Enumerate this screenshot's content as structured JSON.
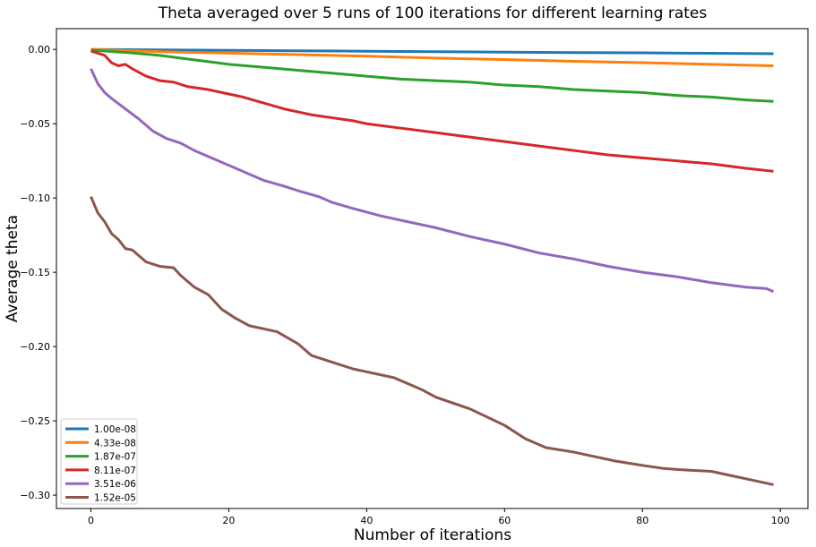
{
  "chart_data": {
    "type": "line",
    "title": "Theta averaged over 5 runs of 100 iterations for different learning rates",
    "xlabel": "Number of iterations",
    "ylabel": "Average theta",
    "xlim": [
      -5,
      104
    ],
    "ylim": [
      -0.309,
      0.014
    ],
    "xticks": [
      0,
      20,
      40,
      60,
      80,
      100
    ],
    "xtick_labels": [
      "0",
      "20",
      "40",
      "60",
      "80",
      "100"
    ],
    "yticks": [
      0.0,
      -0.05,
      -0.1,
      -0.15,
      -0.2,
      -0.25,
      -0.3
    ],
    "ytick_labels": [
      "0.00",
      "−0.05",
      "−0.10",
      "−0.15",
      "−0.20",
      "−0.25",
      "−0.30"
    ],
    "grid": false,
    "legend_position": "lower-left",
    "series": [
      {
        "name": "1.00e-08",
        "color": "#1f77b4",
        "x": [
          0,
          10,
          20,
          30,
          40,
          50,
          60,
          70,
          80,
          90,
          99
        ],
        "values": [
          0.0,
          -0.0003,
          -0.0006,
          -0.0009,
          -0.0012,
          -0.0015,
          -0.0018,
          -0.0021,
          -0.0023,
          -0.0026,
          -0.0029
        ]
      },
      {
        "name": "4.33e-08",
        "color": "#ff7f0e",
        "x": [
          0,
          10,
          20,
          30,
          40,
          50,
          60,
          70,
          80,
          90,
          99
        ],
        "values": [
          0.0,
          -0.0015,
          -0.0025,
          -0.0035,
          -0.0045,
          -0.0058,
          -0.0068,
          -0.008,
          -0.0089,
          -0.01,
          -0.011
        ]
      },
      {
        "name": "1.87e-07",
        "color": "#2ca02c",
        "x": [
          0,
          5,
          10,
          15,
          20,
          25,
          30,
          35,
          40,
          45,
          50,
          55,
          60,
          65,
          70,
          75,
          80,
          85,
          90,
          95,
          99
        ],
        "values": [
          -0.0005,
          -0.002,
          -0.004,
          -0.007,
          -0.01,
          -0.012,
          -0.014,
          -0.016,
          -0.018,
          -0.02,
          -0.021,
          -0.022,
          -0.024,
          -0.025,
          -0.027,
          -0.028,
          -0.029,
          -0.031,
          -0.032,
          -0.034,
          -0.035
        ]
      },
      {
        "name": "8.11e-07",
        "color": "#d62728",
        "x": [
          0,
          2,
          3,
          4,
          5,
          6,
          8,
          10,
          12,
          14,
          17,
          20,
          22,
          25,
          28,
          30,
          32,
          35,
          38,
          40,
          45,
          50,
          55,
          60,
          65,
          70,
          75,
          80,
          85,
          90,
          95,
          99
        ],
        "values": [
          -0.001,
          -0.004,
          -0.009,
          -0.011,
          -0.01,
          -0.013,
          -0.018,
          -0.021,
          -0.022,
          -0.025,
          -0.027,
          -0.03,
          -0.032,
          -0.036,
          -0.04,
          -0.042,
          -0.044,
          -0.046,
          -0.048,
          -0.05,
          -0.053,
          -0.056,
          -0.059,
          -0.062,
          -0.065,
          -0.068,
          -0.071,
          -0.073,
          -0.075,
          -0.077,
          -0.08,
          -0.082
        ]
      },
      {
        "name": "3.51e-06",
        "color": "#9467bd",
        "x": [
          0,
          1,
          2,
          3,
          5,
          7,
          9,
          11,
          13,
          15,
          17,
          20,
          23,
          25,
          28,
          30,
          33,
          35,
          38,
          42,
          46,
          50,
          55,
          60,
          65,
          70,
          75,
          80,
          85,
          90,
          95,
          98,
          99
        ],
        "values": [
          -0.013,
          -0.023,
          -0.029,
          -0.033,
          -0.04,
          -0.047,
          -0.055,
          -0.06,
          -0.063,
          -0.068,
          -0.072,
          -0.078,
          -0.084,
          -0.088,
          -0.092,
          -0.095,
          -0.099,
          -0.103,
          -0.107,
          -0.112,
          -0.116,
          -0.12,
          -0.126,
          -0.131,
          -0.137,
          -0.141,
          -0.146,
          -0.15,
          -0.153,
          -0.157,
          -0.16,
          -0.161,
          -0.163
        ]
      },
      {
        "name": "1.52e-05",
        "color": "#8c564b",
        "x": [
          0,
          1,
          2,
          3,
          4,
          5,
          6,
          8,
          10,
          12,
          13,
          15,
          17,
          19,
          21,
          23,
          25,
          27,
          30,
          32,
          34,
          36,
          38,
          40,
          42,
          44,
          46,
          48,
          50,
          55,
          60,
          63,
          66,
          70,
          73,
          76,
          80,
          83,
          86,
          90,
          93,
          96,
          99
        ],
        "values": [
          -0.099,
          -0.11,
          -0.116,
          -0.124,
          -0.128,
          -0.134,
          -0.135,
          -0.143,
          -0.146,
          -0.147,
          -0.152,
          -0.16,
          -0.165,
          -0.175,
          -0.181,
          -0.186,
          -0.188,
          -0.19,
          -0.198,
          -0.206,
          -0.209,
          -0.212,
          -0.215,
          -0.217,
          -0.219,
          -0.221,
          -0.225,
          -0.229,
          -0.234,
          -0.242,
          -0.253,
          -0.262,
          -0.268,
          -0.271,
          -0.274,
          -0.277,
          -0.28,
          -0.282,
          -0.283,
          -0.284,
          -0.287,
          -0.29,
          -0.293
        ]
      }
    ]
  }
}
